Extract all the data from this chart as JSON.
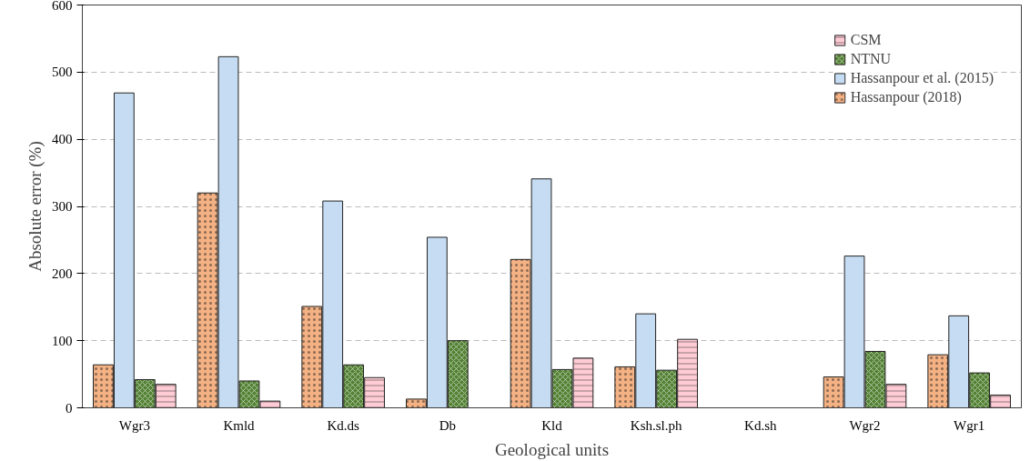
{
  "chart_data": {
    "type": "bar",
    "xlabel": "Geological units",
    "ylabel": "Absolute error (%)",
    "categories": [
      "Wgr3",
      "Kmld",
      "Kd.ds",
      "Db",
      "Kld",
      "Ksh.sl.ph",
      "Kd.sh",
      "Wgr2",
      "Wgr1"
    ],
    "series": [
      {
        "name": "Hassanpour (2018)",
        "color": "#f4b183",
        "values": [
          64,
          320,
          151,
          13,
          221,
          61,
          null,
          46,
          79
        ]
      },
      {
        "name": "Hassanpour et al. (2015)",
        "color": "#c5dcf2",
        "values": [
          469,
          523,
          308,
          254,
          341,
          140,
          null,
          226,
          137
        ]
      },
      {
        "name": "NTNU",
        "color": "#548235",
        "values": [
          42,
          40,
          64,
          100,
          57,
          56,
          null,
          84,
          52
        ]
      },
      {
        "name": "CSM",
        "color": "#ffccd5",
        "values": [
          35,
          10,
          45,
          null,
          74,
          102,
          null,
          35,
          19
        ]
      }
    ],
    "ylim": [
      0,
      600
    ],
    "yticks": [
      0,
      100,
      200,
      300,
      400,
      500,
      600
    ],
    "grid": "y",
    "legend": "top right"
  }
}
